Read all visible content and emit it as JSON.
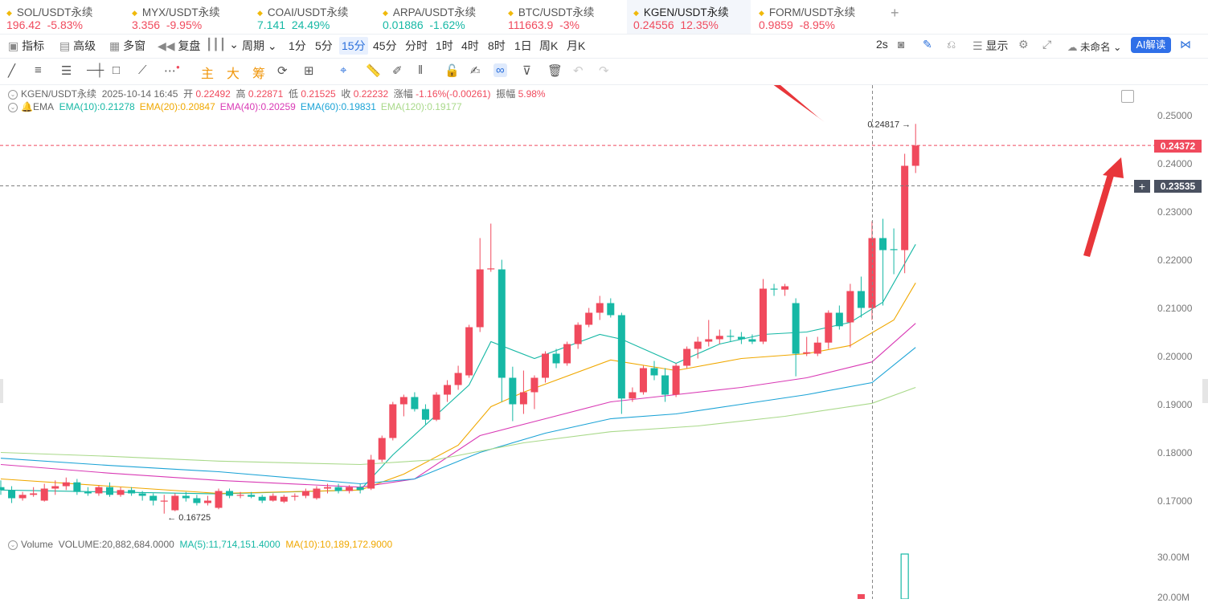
{
  "tabs": [
    {
      "name": "SOL/USDT永续",
      "price": "196.42",
      "change": "-5.83%",
      "color": "#f04a5d"
    },
    {
      "name": "MYX/USDT永续",
      "price": "3.356",
      "change": "-9.95%",
      "color": "#f04a5d"
    },
    {
      "name": "COAI/USDT永续",
      "price": "7.141",
      "change": "24.49%",
      "color": "#16b8a5"
    },
    {
      "name": "ARPA/USDT永续",
      "price": "0.01886",
      "change": "-1.62%",
      "color": "#16b8a5"
    },
    {
      "name": "BTC/USDT永续",
      "price": "111663.9",
      "change": "-3%",
      "color": "#f04a5d"
    },
    {
      "name": "KGEN/USDT永续",
      "price": "0.24556",
      "change": "12.35%",
      "color": "#f04a5d",
      "active": true
    },
    {
      "name": "FORM/USDT永续",
      "price": "0.9859",
      "change": "-8.95%",
      "color": "#f04a5d"
    }
  ],
  "toolbar": {
    "indicator": "指标",
    "advanced": "高级",
    "multi_window": "多窗",
    "replay": "复盘",
    "period": "周期",
    "intervals": [
      "1分",
      "5分",
      "15分",
      "45分",
      "分时",
      "1时",
      "4时",
      "8时",
      "1日",
      "周K",
      "月K"
    ],
    "selected_interval": "15分",
    "refresh": "2s",
    "display": "显示",
    "layout_name": "未命名",
    "ai": "AI解读"
  },
  "drawing_tools": {
    "main": "主",
    "big": "大",
    "chip": "筹"
  },
  "info": {
    "symbol": "KGEN/USDT永续",
    "datetime": "2025-10-14 16:45",
    "open_label": "开",
    "open": "0.22492",
    "high_label": "高",
    "high": "0.22871",
    "low_label": "低",
    "low": "0.21525",
    "close_label": "收",
    "close": "0.22232",
    "chg_label": "涨幅",
    "chg": "-1.16%(-0.00261)",
    "amp_label": "振幅",
    "amp": "5.98%"
  },
  "ema": {
    "label": "EMA",
    "items": [
      {
        "text": "EMA(10):0.21278",
        "color": "#16b8a5"
      },
      {
        "text": "EMA(20):0.20847",
        "color": "#f0a800"
      },
      {
        "text": "EMA(40):0.20259",
        "color": "#d93ab5"
      },
      {
        "text": "EMA(60):0.19831",
        "color": "#1ba3d6"
      },
      {
        "text": "EMA(120):0.19177",
        "color": "#a9d98a"
      }
    ]
  },
  "volume_info": {
    "label": "Volume",
    "volume": "VOLUME:20,882,684.0000",
    "ma5": "MA(5):11,714,151.4000",
    "ma10": "MA(10):10,189,172.9000"
  },
  "price_axis": [
    "0.25000",
    "0.24000",
    "0.23000",
    "0.22000",
    "0.21000",
    "0.20000",
    "0.19000",
    "0.18000",
    "0.17000"
  ],
  "volume_axis": [
    "30.00M",
    "20.00M"
  ],
  "current_price": {
    "value": "0.24372",
    "color": "#f04a5d"
  },
  "crosshair_price": {
    "value": "0.23535",
    "color": "#4a5160"
  },
  "high_marker": "0.24817",
  "low_marker": "0.16725",
  "chart_data": {
    "type": "candlestick",
    "ylim": [
      0.16,
      0.25
    ],
    "y_step": 0.01,
    "candles": [
      {
        "o": 0.1728,
        "h": 0.1742,
        "l": 0.1712,
        "c": 0.1722
      },
      {
        "o": 0.1722,
        "h": 0.173,
        "l": 0.1695,
        "c": 0.1705
      },
      {
        "o": 0.1705,
        "h": 0.1718,
        "l": 0.17,
        "c": 0.1712
      },
      {
        "o": 0.1712,
        "h": 0.1728,
        "l": 0.1708,
        "c": 0.1715
      },
      {
        "o": 0.17,
        "h": 0.1735,
        "l": 0.1698,
        "c": 0.1725
      },
      {
        "o": 0.1725,
        "h": 0.1742,
        "l": 0.1712,
        "c": 0.173
      },
      {
        "o": 0.173,
        "h": 0.1748,
        "l": 0.1722,
        "c": 0.1738
      },
      {
        "o": 0.1738,
        "h": 0.1745,
        "l": 0.1712,
        "c": 0.1718
      },
      {
        "o": 0.1718,
        "h": 0.1728,
        "l": 0.171,
        "c": 0.1715
      },
      {
        "o": 0.1715,
        "h": 0.1732,
        "l": 0.171,
        "c": 0.1728
      },
      {
        "o": 0.1728,
        "h": 0.1738,
        "l": 0.1708,
        "c": 0.1712
      },
      {
        "o": 0.1712,
        "h": 0.1728,
        "l": 0.1708,
        "c": 0.1722
      },
      {
        "o": 0.1722,
        "h": 0.1728,
        "l": 0.171,
        "c": 0.1715
      },
      {
        "o": 0.1715,
        "h": 0.172,
        "l": 0.17,
        "c": 0.171
      },
      {
        "o": 0.171,
        "h": 0.1715,
        "l": 0.169,
        "c": 0.17
      },
      {
        "o": 0.17,
        "h": 0.1712,
        "l": 0.1673,
        "c": 0.17
      },
      {
        "o": 0.168,
        "h": 0.1715,
        "l": 0.1678,
        "c": 0.171
      },
      {
        "o": 0.171,
        "h": 0.1718,
        "l": 0.1698,
        "c": 0.1705
      },
      {
        "o": 0.1705,
        "h": 0.1712,
        "l": 0.169,
        "c": 0.1695
      },
      {
        "o": 0.1695,
        "h": 0.171,
        "l": 0.169,
        "c": 0.17
      },
      {
        "o": 0.1685,
        "h": 0.1725,
        "l": 0.1682,
        "c": 0.172
      },
      {
        "o": 0.172,
        "h": 0.1725,
        "l": 0.1705,
        "c": 0.171
      },
      {
        "o": 0.171,
        "h": 0.1718,
        "l": 0.1705,
        "c": 0.1712
      },
      {
        "o": 0.1712,
        "h": 0.1718,
        "l": 0.1705,
        "c": 0.1708
      },
      {
        "o": 0.1708,
        "h": 0.1712,
        "l": 0.1695,
        "c": 0.17
      },
      {
        "o": 0.17,
        "h": 0.1715,
        "l": 0.1698,
        "c": 0.171
      },
      {
        "o": 0.1698,
        "h": 0.1712,
        "l": 0.1695,
        "c": 0.1708
      },
      {
        "o": 0.1708,
        "h": 0.1715,
        "l": 0.17,
        "c": 0.171
      },
      {
        "o": 0.171,
        "h": 0.1725,
        "l": 0.1705,
        "c": 0.172
      },
      {
        "o": 0.1705,
        "h": 0.173,
        "l": 0.1702,
        "c": 0.1725
      },
      {
        "o": 0.1725,
        "h": 0.1735,
        "l": 0.1715,
        "c": 0.1728
      },
      {
        "o": 0.1728,
        "h": 0.1735,
        "l": 0.1715,
        "c": 0.172
      },
      {
        "o": 0.172,
        "h": 0.1732,
        "l": 0.1715,
        "c": 0.1728
      },
      {
        "o": 0.1728,
        "h": 0.1735,
        "l": 0.1715,
        "c": 0.1722
      },
      {
        "o": 0.1725,
        "h": 0.1795,
        "l": 0.1722,
        "c": 0.1785
      },
      {
        "o": 0.1785,
        "h": 0.1835,
        "l": 0.178,
        "c": 0.183
      },
      {
        "o": 0.183,
        "h": 0.1905,
        "l": 0.1825,
        "c": 0.19
      },
      {
        "o": 0.19,
        "h": 0.192,
        "l": 0.1875,
        "c": 0.1915
      },
      {
        "o": 0.1915,
        "h": 0.1925,
        "l": 0.1885,
        "c": 0.189
      },
      {
        "o": 0.189,
        "h": 0.19,
        "l": 0.1858,
        "c": 0.1868
      },
      {
        "o": 0.1868,
        "h": 0.1925,
        "l": 0.1865,
        "c": 0.192
      },
      {
        "o": 0.192,
        "h": 0.195,
        "l": 0.1905,
        "c": 0.194
      },
      {
        "o": 0.194,
        "h": 0.198,
        "l": 0.193,
        "c": 0.1965
      },
      {
        "o": 0.196,
        "h": 0.2065,
        "l": 0.1955,
        "c": 0.206
      },
      {
        "o": 0.206,
        "h": 0.2245,
        "l": 0.205,
        "c": 0.218
      },
      {
        "o": 0.218,
        "h": 0.2275,
        "l": 0.2175,
        "c": 0.2182
      },
      {
        "o": 0.218,
        "h": 0.22,
        "l": 0.1905,
        "c": 0.1955
      },
      {
        "o": 0.1955,
        "h": 0.1978,
        "l": 0.1865,
        "c": 0.19
      },
      {
        "o": 0.19,
        "h": 0.197,
        "l": 0.188,
        "c": 0.1925
      },
      {
        "o": 0.1925,
        "h": 0.196,
        "l": 0.189,
        "c": 0.1955
      },
      {
        "o": 0.1955,
        "h": 0.201,
        "l": 0.1945,
        "c": 0.2005
      },
      {
        "o": 0.2005,
        "h": 0.2015,
        "l": 0.1975,
        "c": 0.1985
      },
      {
        "o": 0.1985,
        "h": 0.203,
        "l": 0.198,
        "c": 0.2025
      },
      {
        "o": 0.2025,
        "h": 0.207,
        "l": 0.2015,
        "c": 0.2065
      },
      {
        "o": 0.2065,
        "h": 0.21,
        "l": 0.206,
        "c": 0.209
      },
      {
        "o": 0.209,
        "h": 0.2125,
        "l": 0.2075,
        "c": 0.211
      },
      {
        "o": 0.211,
        "h": 0.212,
        "l": 0.208,
        "c": 0.2085
      },
      {
        "o": 0.2085,
        "h": 0.209,
        "l": 0.188,
        "c": 0.1912
      },
      {
        "o": 0.1912,
        "h": 0.1935,
        "l": 0.1905,
        "c": 0.1925
      },
      {
        "o": 0.1925,
        "h": 0.198,
        "l": 0.192,
        "c": 0.1975
      },
      {
        "o": 0.1975,
        "h": 0.199,
        "l": 0.195,
        "c": 0.196
      },
      {
        "o": 0.196,
        "h": 0.1975,
        "l": 0.1905,
        "c": 0.192
      },
      {
        "o": 0.192,
        "h": 0.1985,
        "l": 0.1915,
        "c": 0.198
      },
      {
        "o": 0.198,
        "h": 0.202,
        "l": 0.1975,
        "c": 0.2015
      },
      {
        "o": 0.2015,
        "h": 0.204,
        "l": 0.1995,
        "c": 0.203
      },
      {
        "o": 0.203,
        "h": 0.2075,
        "l": 0.202,
        "c": 0.2035
      },
      {
        "o": 0.2035,
        "h": 0.2055,
        "l": 0.2025,
        "c": 0.2042
      },
      {
        "o": 0.2042,
        "h": 0.2055,
        "l": 0.203,
        "c": 0.204
      },
      {
        "o": 0.204,
        "h": 0.205,
        "l": 0.2025,
        "c": 0.2035
      },
      {
        "o": 0.2035,
        "h": 0.2045,
        "l": 0.2025,
        "c": 0.203
      },
      {
        "o": 0.203,
        "h": 0.216,
        "l": 0.2025,
        "c": 0.214
      },
      {
        "o": 0.214,
        "h": 0.215,
        "l": 0.2125,
        "c": 0.2138
      },
      {
        "o": 0.2138,
        "h": 0.215,
        "l": 0.2125,
        "c": 0.2145
      },
      {
        "o": 0.211,
        "h": 0.212,
        "l": 0.1958,
        "c": 0.2005
      },
      {
        "o": 0.2005,
        "h": 0.204,
        "l": 0.2,
        "c": 0.2008
      },
      {
        "o": 0.2005,
        "h": 0.204,
        "l": 0.2,
        "c": 0.2028
      },
      {
        "o": 0.2028,
        "h": 0.2095,
        "l": 0.2015,
        "c": 0.209
      },
      {
        "o": 0.209,
        "h": 0.2105,
        "l": 0.2055,
        "c": 0.2062
      },
      {
        "o": 0.207,
        "h": 0.215,
        "l": 0.2018,
        "c": 0.2135
      },
      {
        "o": 0.2135,
        "h": 0.2165,
        "l": 0.208,
        "c": 0.21
      },
      {
        "o": 0.21,
        "h": 0.228,
        "l": 0.2075,
        "c": 0.2245
      },
      {
        "o": 0.2245,
        "h": 0.2285,
        "l": 0.2105,
        "c": 0.222
      },
      {
        "o": 0.2222,
        "h": 0.2265,
        "l": 0.217,
        "c": 0.222
      },
      {
        "o": 0.222,
        "h": 0.242,
        "l": 0.2172,
        "c": 0.2395
      },
      {
        "o": 0.2395,
        "h": 0.2482,
        "l": 0.238,
        "c": 0.2437
      }
    ],
    "ema_series": [
      {
        "name": "EMA(10)",
        "color": "#16b8a5",
        "values": [
          [
            0,
            0.1722
          ],
          [
            20,
            0.1714
          ],
          [
            33,
            0.1722
          ],
          [
            36,
            0.1795
          ],
          [
            43,
            0.194
          ],
          [
            45,
            0.203
          ],
          [
            49,
            0.1995
          ],
          [
            55,
            0.2045
          ],
          [
            57,
            0.2035
          ],
          [
            62,
            0.1985
          ],
          [
            66,
            0.2025
          ],
          [
            70,
            0.2045
          ],
          [
            74,
            0.205
          ],
          [
            78,
            0.207
          ],
          [
            81,
            0.2112
          ],
          [
            84,
            0.2232
          ]
        ]
      },
      {
        "name": "EMA(20)",
        "color": "#f0a800",
        "values": [
          [
            0,
            0.1745
          ],
          [
            10,
            0.173
          ],
          [
            20,
            0.1715
          ],
          [
            33,
            0.1722
          ],
          [
            37,
            0.1755
          ],
          [
            42,
            0.1815
          ],
          [
            45,
            0.1895
          ],
          [
            48,
            0.1925
          ],
          [
            56,
            0.1992
          ],
          [
            62,
            0.197
          ],
          [
            68,
            0.1995
          ],
          [
            74,
            0.2005
          ],
          [
            78,
            0.2022
          ],
          [
            82,
            0.2075
          ],
          [
            84,
            0.2152
          ]
        ]
      },
      {
        "name": "EMA(40)",
        "color": "#d93ab5",
        "values": [
          [
            0,
            0.1775
          ],
          [
            10,
            0.1757
          ],
          [
            20,
            0.1742
          ],
          [
            33,
            0.1728
          ],
          [
            38,
            0.1745
          ],
          [
            44,
            0.1835
          ],
          [
            50,
            0.187
          ],
          [
            56,
            0.1905
          ],
          [
            62,
            0.192
          ],
          [
            68,
            0.1935
          ],
          [
            74,
            0.1955
          ],
          [
            80,
            0.1988
          ],
          [
            84,
            0.2068
          ]
        ]
      },
      {
        "name": "EMA(60)",
        "color": "#1ba3d6",
        "values": [
          [
            0,
            0.1788
          ],
          [
            10,
            0.1773
          ],
          [
            20,
            0.176
          ],
          [
            33,
            0.1735
          ],
          [
            38,
            0.1745
          ],
          [
            44,
            0.18
          ],
          [
            50,
            0.184
          ],
          [
            56,
            0.187
          ],
          [
            62,
            0.188
          ],
          [
            68,
            0.19
          ],
          [
            74,
            0.192
          ],
          [
            80,
            0.1945
          ],
          [
            84,
            0.2018
          ]
        ]
      },
      {
        "name": "EMA(120)",
        "color": "#a9d98a",
        "values": [
          [
            0,
            0.18
          ],
          [
            10,
            0.1792
          ],
          [
            20,
            0.1782
          ],
          [
            33,
            0.1775
          ],
          [
            40,
            0.1785
          ],
          [
            48,
            0.182
          ],
          [
            56,
            0.1843
          ],
          [
            64,
            0.1855
          ],
          [
            72,
            0.1875
          ],
          [
            80,
            0.1902
          ],
          [
            84,
            0.1935
          ]
        ]
      }
    ],
    "volume_ylim": [
      0,
      30000000
    ]
  }
}
